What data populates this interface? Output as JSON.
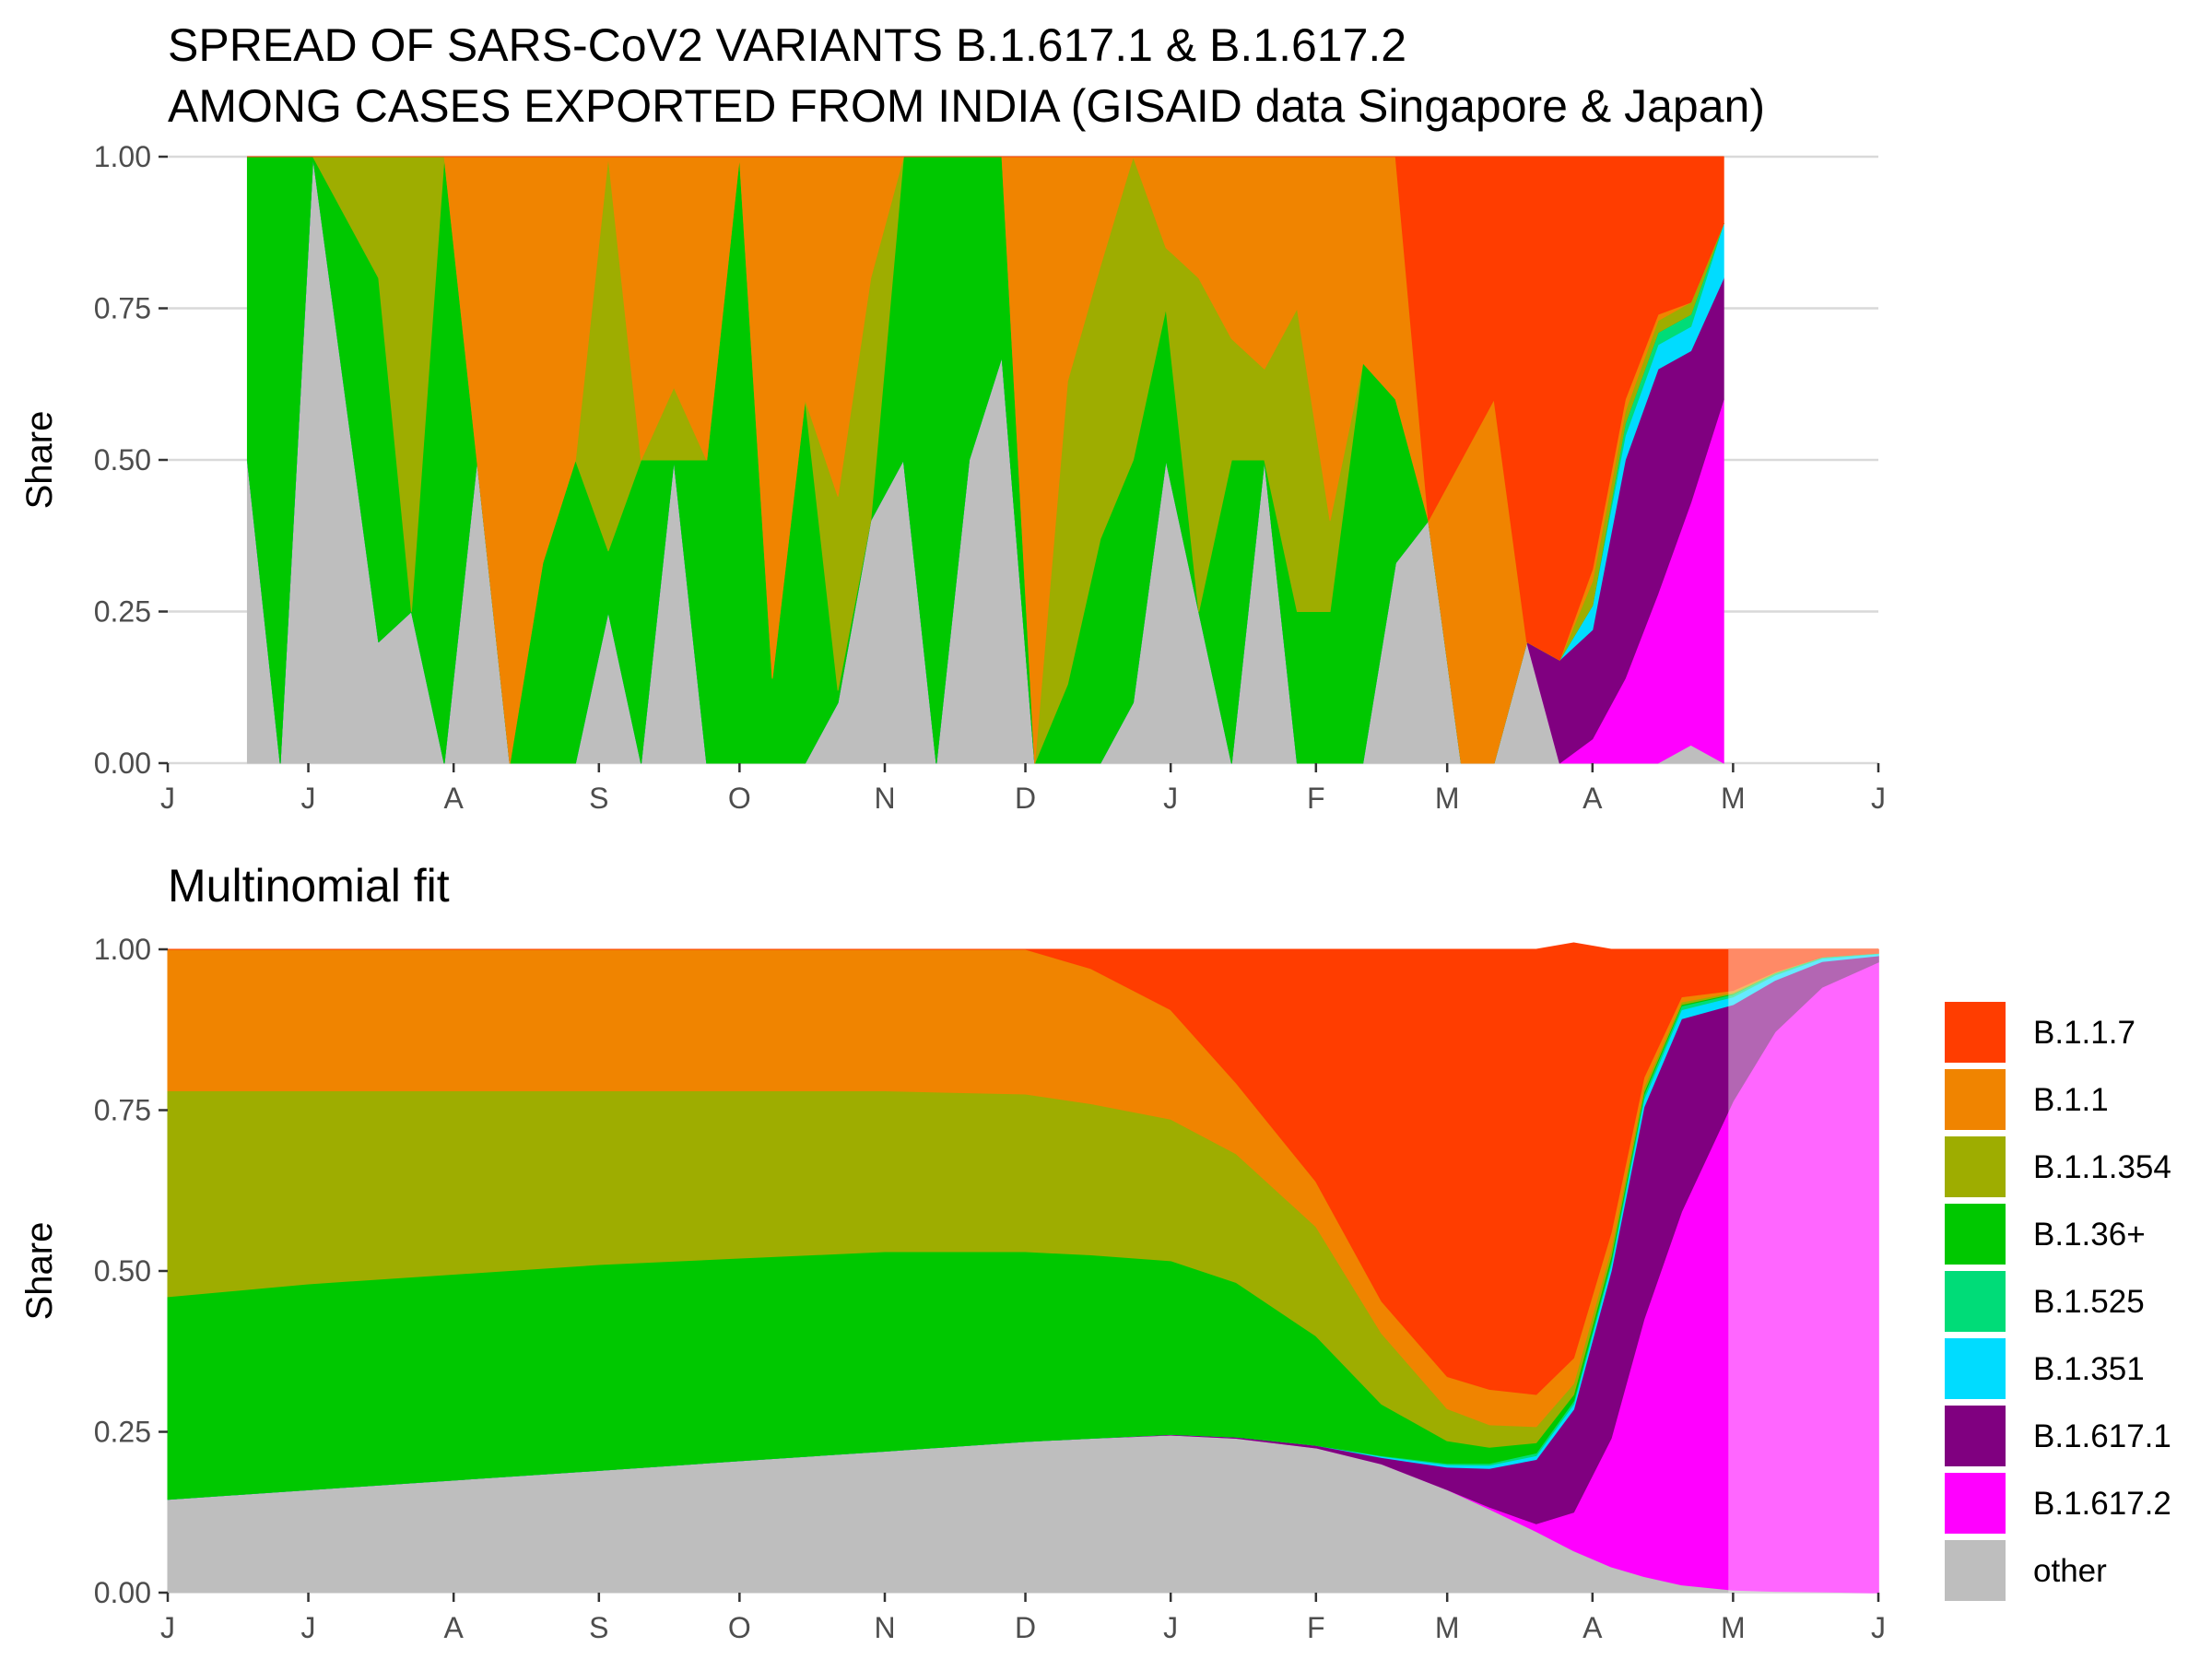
{
  "colors": {
    "B.1.1.7": "#ff3d00",
    "B.1.1": "#f08400",
    "B.1.1.354": "#9ead00",
    "B.1.36+": "#00c800",
    "B.1.525": "#00dc78",
    "B.1.351": "#00dcff",
    "B.1.617.1": "#800080",
    "B.1.617.2": "#ff00ff",
    "other": "#bebebe",
    "grid": "#d9d9d9",
    "axis": "#333333"
  },
  "chart_data": [
    {
      "type": "area",
      "title_line1": "SPREAD OF SARS-CoV2 VARIANTS B.1.617.1 & B.1.617.2",
      "title_line2": "AMONG CASES EXPORTED FROM INDIA (GISAID data Singapore & Japan)",
      "ylabel": "Share",
      "ylim": [
        0,
        1
      ],
      "yticks": [
        "0.00",
        "0.25",
        "0.50",
        "0.75",
        "1.00"
      ],
      "yticks_values": [
        0,
        0.25,
        0.5,
        0.75,
        1
      ],
      "xlim": [
        "2020-06-01",
        "2021-06-01"
      ],
      "xticks": [
        "J",
        "J",
        "A",
        "S",
        "O",
        "N",
        "D",
        "J",
        "F",
        "M",
        "A",
        "M",
        "J"
      ],
      "xticks_dates": [
        "2020-06-01",
        "2020-07-01",
        "2020-08-01",
        "2020-09-01",
        "2020-10-01",
        "2020-11-01",
        "2020-12-01",
        "2021-01-01",
        "2021-02-01",
        "2021-03-01",
        "2021-04-01",
        "2021-05-01",
        "2021-06-01"
      ],
      "grid": true,
      "stack_order_bottom_to_top": [
        "other",
        "B.1.617.2",
        "B.1.617.1",
        "B.1.351",
        "B.1.525",
        "B.1.36+",
        "B.1.1.354",
        "B.1.1",
        "B.1.1.7"
      ],
      "x": [
        "2020-06-18",
        "2020-06-25",
        "2020-07-02",
        "2020-07-16",
        "2020-07-23",
        "2020-07-30",
        "2020-08-06",
        "2020-08-13",
        "2020-08-20",
        "2020-08-27",
        "2020-09-03",
        "2020-09-10",
        "2020-09-17",
        "2020-09-24",
        "2020-10-01",
        "2020-10-08",
        "2020-10-15",
        "2020-10-22",
        "2020-10-29",
        "2020-11-05",
        "2020-11-12",
        "2020-11-19",
        "2020-11-26",
        "2020-12-03",
        "2020-12-10",
        "2020-12-17",
        "2020-12-24",
        "2020-12-31",
        "2021-01-07",
        "2021-01-14",
        "2021-01-21",
        "2021-01-28",
        "2021-02-04",
        "2021-02-11",
        "2021-02-18",
        "2021-02-25",
        "2021-03-04",
        "2021-03-11",
        "2021-03-18",
        "2021-03-25",
        "2021-04-01",
        "2021-04-08",
        "2021-04-15",
        "2021-04-22",
        "2021-04-29"
      ],
      "series": [
        {
          "name": "other",
          "values": [
            0.5,
            0,
            1,
            0.2,
            0.25,
            0,
            0.5,
            0,
            0,
            0,
            0.25,
            0,
            0.5,
            0,
            0,
            0,
            0,
            0.1,
            0.4,
            0.5,
            0,
            0.5,
            0.67,
            0,
            0,
            0,
            0.1,
            0.5,
            0.25,
            0,
            0.5,
            0,
            0,
            0,
            0.33,
            0.4,
            0,
            0,
            0.2,
            0,
            0,
            0,
            0,
            0.03,
            0
          ]
        },
        {
          "name": "B.1.617.2",
          "values": [
            0,
            0,
            0,
            0,
            0,
            0,
            0,
            0,
            0,
            0,
            0,
            0,
            0,
            0,
            0,
            0,
            0,
            0,
            0,
            0,
            0,
            0,
            0,
            0,
            0,
            0,
            0,
            0,
            0,
            0,
            0,
            0,
            0,
            0,
            0,
            0,
            0,
            0,
            0,
            0,
            0.04,
            0.14,
            0.28,
            0.4,
            0.6
          ]
        },
        {
          "name": "B.1.617.1",
          "values": [
            0,
            0,
            0,
            0,
            0,
            0,
            0,
            0,
            0,
            0,
            0,
            0,
            0,
            0,
            0,
            0,
            0,
            0,
            0,
            0,
            0,
            0,
            0,
            0,
            0,
            0,
            0,
            0,
            0,
            0,
            0,
            0,
            0,
            0,
            0,
            0,
            0,
            0,
            0,
            0.17,
            0.18,
            0.36,
            0.37,
            0.25,
            0.2
          ]
        },
        {
          "name": "B.1.351",
          "values": [
            0,
            0,
            0,
            0,
            0,
            0,
            0,
            0,
            0,
            0,
            0,
            0,
            0,
            0,
            0,
            0,
            0,
            0,
            0,
            0,
            0,
            0,
            0,
            0,
            0,
            0,
            0,
            0,
            0,
            0,
            0,
            0,
            0,
            0,
            0,
            0,
            0,
            0,
            0,
            0,
            0.04,
            0.04,
            0.04,
            0.04,
            0.09
          ]
        },
        {
          "name": "B.1.525",
          "values": [
            0,
            0,
            0,
            0,
            0,
            0,
            0,
            0,
            0,
            0,
            0,
            0,
            0,
            0,
            0,
            0,
            0,
            0,
            0,
            0,
            0,
            0,
            0,
            0,
            0,
            0,
            0,
            0,
            0,
            0,
            0,
            0,
            0,
            0,
            0,
            0,
            0,
            0,
            0,
            0,
            0,
            0.02,
            0.02,
            0.02,
            0
          ]
        },
        {
          "name": "B.1.36+",
          "values": [
            0.5,
            1,
            0,
            0.6,
            0,
            1,
            0,
            0,
            0.33,
            0.5,
            0.1,
            0.5,
            0,
            0.5,
            1,
            0.14,
            0.6,
            0.02,
            0,
            0.5,
            1,
            0.5,
            0.33,
            0,
            0.13,
            0.37,
            0.4,
            0.25,
            0,
            0.5,
            0,
            0.25,
            0.25,
            0.66,
            0.27,
            0,
            0,
            0,
            0,
            0,
            0,
            0,
            0,
            0,
            0
          ]
        },
        {
          "name": "B.1.1.354",
          "values": [
            0,
            0,
            0,
            0.2,
            0.75,
            0,
            0,
            0,
            0,
            0,
            0.65,
            0,
            0.12,
            0,
            0,
            0,
            0,
            0.32,
            0.4,
            0,
            0,
            0,
            0,
            0,
            0.5,
            0.45,
            0.5,
            0.1,
            0.55,
            0.2,
            0.15,
            0.5,
            0.15,
            0,
            0,
            0,
            0,
            0,
            0,
            0,
            0.04,
            0.02,
            0.02,
            0.02,
            0
          ]
        },
        {
          "name": "B.1.1",
          "values": [
            0,
            0,
            0,
            0,
            0,
            0,
            0.5,
            1,
            0.67,
            0.5,
            0,
            0.5,
            0.38,
            0.5,
            0,
            0.86,
            0.4,
            0.56,
            0.2,
            0,
            0,
            0,
            0,
            1,
            0.37,
            0.18,
            0,
            0.15,
            0.2,
            0.3,
            0.35,
            0.25,
            0.6,
            0.34,
            0.4,
            0,
            0.5,
            0.6,
            0,
            0,
            0.02,
            0.02,
            0.01,
            0,
            0
          ]
        },
        {
          "name": "B.1.1.7",
          "values": [
            0,
            0,
            0,
            0,
            0,
            0,
            0,
            0,
            0,
            0,
            0,
            0,
            0,
            0,
            0,
            0,
            0,
            0,
            0,
            0,
            0,
            0,
            0,
            0,
            0,
            0,
            0,
            0,
            0,
            0,
            0,
            0,
            0,
            0,
            0,
            0.6,
            0.5,
            0.4,
            0.8,
            0.83,
            0.68,
            0.4,
            0.26,
            0.24,
            0.11
          ]
        }
      ]
    },
    {
      "type": "area",
      "title": "Multinomial fit",
      "ylabel": "Share",
      "ylim": [
        0,
        1
      ],
      "yticks": [
        "0.00",
        "0.25",
        "0.50",
        "0.75",
        "1.00"
      ],
      "yticks_values": [
        0,
        0.25,
        0.5,
        0.75,
        1
      ],
      "xlim": [
        "2020-06-01",
        "2021-06-01"
      ],
      "xticks": [
        "J",
        "J",
        "A",
        "S",
        "O",
        "N",
        "D",
        "J",
        "F",
        "M",
        "A",
        "M",
        "J"
      ],
      "xticks_dates": [
        "2020-06-01",
        "2020-07-01",
        "2020-08-01",
        "2020-09-01",
        "2020-10-01",
        "2020-11-01",
        "2020-12-01",
        "2021-01-01",
        "2021-02-01",
        "2021-03-01",
        "2021-04-01",
        "2021-05-01",
        "2021-06-01"
      ],
      "grid": false,
      "fit_end": "2021-04-30",
      "stack_order_bottom_to_top": [
        "other",
        "B.1.617.2",
        "B.1.617.1",
        "B.1.351",
        "B.1.525",
        "B.1.36+",
        "B.1.1.354",
        "B.1.1",
        "B.1.1.7"
      ],
      "x": [
        "2020-06-01",
        "2020-07-01",
        "2020-08-01",
        "2020-09-01",
        "2020-10-01",
        "2020-11-01",
        "2020-12-01",
        "2020-12-15",
        "2021-01-01",
        "2021-01-15",
        "2021-02-01",
        "2021-02-15",
        "2021-03-01",
        "2021-03-10",
        "2021-03-20",
        "2021-03-28",
        "2021-04-05",
        "2021-04-12",
        "2021-04-20",
        "2021-05-01",
        "2021-05-10",
        "2021-05-20",
        "2021-06-01"
      ],
      "series": [
        {
          "name": "other",
          "values": [
            0.145,
            0.16,
            0.175,
            0.19,
            0.205,
            0.22,
            0.235,
            0.24,
            0.245,
            0.24,
            0.225,
            0.2,
            0.16,
            0.13,
            0.095,
            0.065,
            0.04,
            0.025,
            0.012,
            0.004,
            0.002,
            0.001,
            0
          ]
        },
        {
          "name": "B.1.617.2",
          "values": [
            0,
            0,
            0,
            0,
            0,
            0,
            0,
            0,
            0,
            0,
            0,
            0,
            0,
            0.003,
            0.012,
            0.06,
            0.2,
            0.4,
            0.58,
            0.76,
            0.87,
            0.94,
            0.98
          ]
        },
        {
          "name": "B.1.617.1",
          "values": [
            0,
            0,
            0,
            0,
            0,
            0,
            0,
            0,
            0.001,
            0.002,
            0.004,
            0.01,
            0.035,
            0.06,
            0.1,
            0.16,
            0.26,
            0.33,
            0.3,
            0.15,
            0.08,
            0.04,
            0.01
          ]
        },
        {
          "name": "B.1.351",
          "values": [
            0,
            0,
            0,
            0,
            0,
            0,
            0,
            0,
            0,
            0,
            0,
            0.002,
            0.004,
            0.005,
            0.006,
            0.008,
            0.01,
            0.012,
            0.014,
            0.012,
            0.008,
            0.005,
            0.003
          ]
        },
        {
          "name": "B.1.525",
          "values": [
            0,
            0,
            0,
            0,
            0,
            0,
            0,
            0,
            0,
            0,
            0,
            0.001,
            0.002,
            0.003,
            0.004,
            0.005,
            0.006,
            0.007,
            0.006,
            0.004,
            0.003,
            0.002,
            0.001
          ]
        },
        {
          "name": "B.1.36+",
          "values": [
            0.315,
            0.32,
            0.32,
            0.32,
            0.315,
            0.31,
            0.295,
            0.285,
            0.27,
            0.24,
            0.17,
            0.08,
            0.035,
            0.025,
            0.016,
            0.01,
            0.007,
            0.004,
            0.002,
            0.001,
            0,
            0,
            0
          ]
        },
        {
          "name": "B.1.1.354",
          "values": [
            0.32,
            0.3,
            0.285,
            0.27,
            0.26,
            0.25,
            0.245,
            0.235,
            0.22,
            0.2,
            0.17,
            0.11,
            0.05,
            0.035,
            0.025,
            0.017,
            0.012,
            0.008,
            0.004,
            0.002,
            0.001,
            0,
            0
          ]
        },
        {
          "name": "B.1.1",
          "values": [
            0.22,
            0.22,
            0.22,
            0.22,
            0.22,
            0.22,
            0.225,
            0.21,
            0.17,
            0.11,
            0.07,
            0.05,
            0.05,
            0.055,
            0.05,
            0.04,
            0.025,
            0.015,
            0.008,
            0.003,
            0.001,
            0,
            0
          ]
        },
        {
          "name": "B.1.1.7",
          "values": [
            0,
            0,
            0,
            0,
            0,
            0,
            0,
            0.03,
            0.094,
            0.208,
            0.361,
            0.547,
            0.664,
            0.684,
            0.692,
            0.645,
            0.44,
            0.199,
            0.074,
            0.064,
            0.035,
            0.012,
            0.006
          ]
        }
      ]
    }
  ],
  "legend": {
    "items": [
      {
        "key": "B.1.1.7",
        "label": "B.1.1.7"
      },
      {
        "key": "B.1.1",
        "label": "B.1.1"
      },
      {
        "key": "B.1.1.354",
        "label": "B.1.1.354"
      },
      {
        "key": "B.1.36+",
        "label": "B.1.36+"
      },
      {
        "key": "B.1.525",
        "label": "B.1.525"
      },
      {
        "key": "B.1.351",
        "label": "B.1.351"
      },
      {
        "key": "B.1.617.1",
        "label": "B.1.617.1"
      },
      {
        "key": "B.1.617.2",
        "label": "B.1.617.2"
      },
      {
        "key": "other",
        "label": "other"
      }
    ]
  }
}
